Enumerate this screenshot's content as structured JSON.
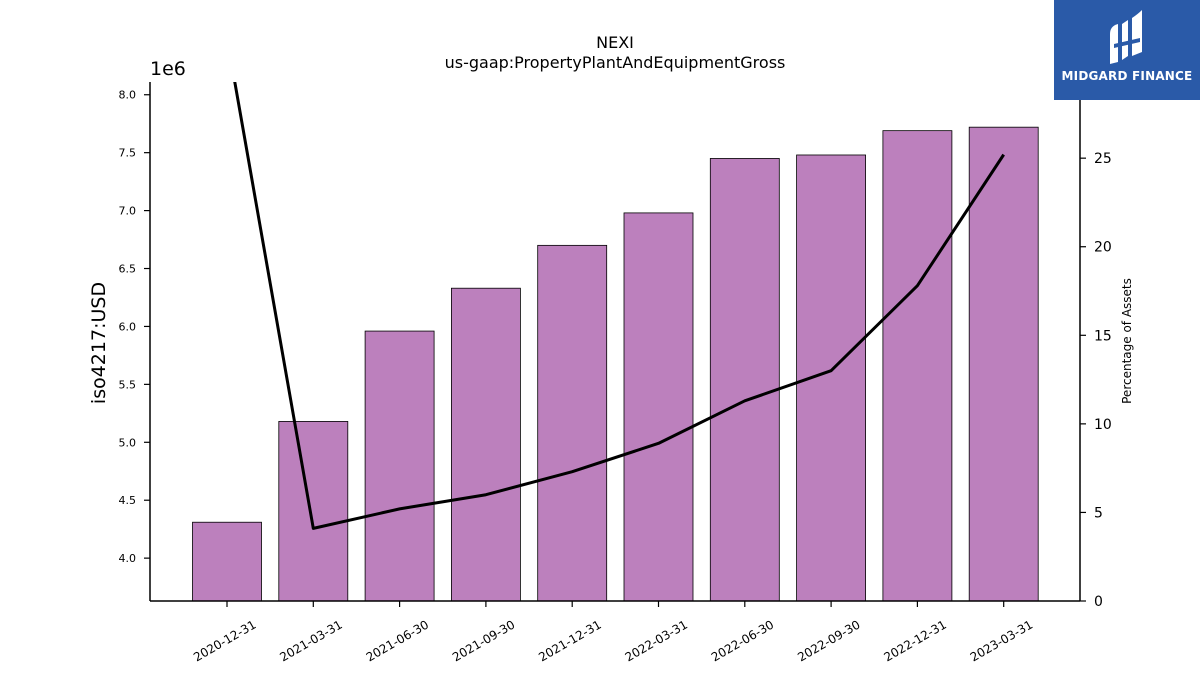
{
  "colors": {
    "bar_fill": "#bc80bd",
    "bar_stroke": "#000000",
    "line": "#000000",
    "logo_bg": "#2a5aa8"
  },
  "logo": {
    "text": "MIDGARD FINANCE",
    "icon": "midgard-logo-icon"
  },
  "chart_data": {
    "type": "bar",
    "title": "NEXI",
    "subtitle": "us-gaap:PropertyPlantAndEquipmentGross",
    "ylabel": "iso4217:USD",
    "y2label": "Percentage of Assets",
    "y_offset_label": "1e6",
    "categories": [
      "2020-12-31",
      "2021-03-31",
      "2021-06-30",
      "2021-09-30",
      "2021-12-31",
      "2022-03-31",
      "2022-06-30",
      "2022-09-30",
      "2022-12-31",
      "2023-03-31"
    ],
    "series": [
      {
        "kind": "bar",
        "axis": "left",
        "values": [
          4310000,
          5180000,
          5960000,
          6330000,
          6700000,
          6980000,
          7450000,
          7480000,
          7690000,
          7720000
        ]
      },
      {
        "kind": "line",
        "axis": "right",
        "values": [
          31.8,
          4.1,
          5.2,
          6.0,
          7.3,
          8.9,
          11.3,
          13.0,
          17.8,
          25.2
        ]
      }
    ],
    "ylim": [
      3630000,
      8110000
    ],
    "y2lim": [
      0,
      29.3
    ],
    "yticks": [
      "4.0",
      "4.5",
      "5.0",
      "5.5",
      "6.0",
      "6.5",
      "7.0",
      "7.5",
      "8.0"
    ],
    "ytick_values": [
      4000000,
      4500000,
      5000000,
      5500000,
      6000000,
      6500000,
      7000000,
      7500000,
      8000000
    ],
    "y2ticks": [
      "0",
      "5",
      "10",
      "15",
      "20",
      "25"
    ],
    "y2tick_values": [
      0,
      5,
      10,
      15,
      20,
      25
    ],
    "grid": false,
    "legend": "none"
  }
}
